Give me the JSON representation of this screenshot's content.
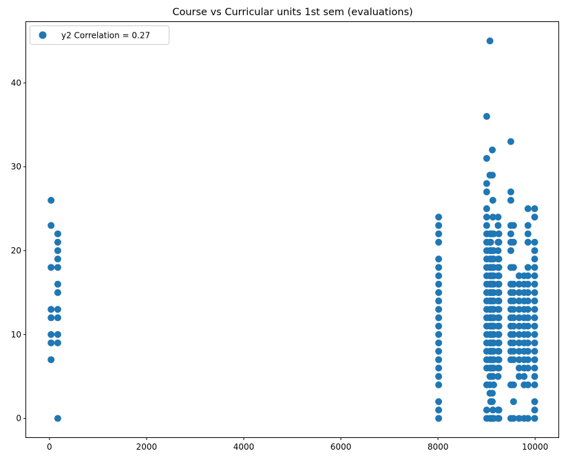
{
  "chart_data": {
    "type": "scatter",
    "title": "Course vs Curricular units 1st sem (evaluations)",
    "xlabel": "",
    "ylabel": "",
    "xlim": [
      -480,
      10480
    ],
    "ylim": [
      -2.25,
      47.25
    ],
    "xticks": [
      0,
      2000,
      4000,
      6000,
      8000,
      10000
    ],
    "yticks": [
      0,
      10,
      20,
      30,
      40
    ],
    "grid": false,
    "legend": {
      "placement": "top-left",
      "label": "y2 Correlation = 0.27"
    },
    "marker_color": "#1f77b4",
    "series": [
      {
        "name": "y2 Correlation = 0.27",
        "color": "#1f77b4",
        "points": [
          [
            33,
            7
          ],
          [
            33,
            9
          ],
          [
            33,
            10
          ],
          [
            33,
            12
          ],
          [
            33,
            13
          ],
          [
            33,
            18
          ],
          [
            33,
            23
          ],
          [
            33,
            26
          ],
          [
            171,
            0
          ],
          [
            171,
            9
          ],
          [
            171,
            10
          ],
          [
            171,
            12
          ],
          [
            171,
            13
          ],
          [
            171,
            15
          ],
          [
            171,
            16
          ],
          [
            171,
            18
          ],
          [
            171,
            19
          ],
          [
            171,
            20
          ],
          [
            171,
            21
          ],
          [
            171,
            22
          ],
          [
            8014,
            0
          ],
          [
            8014,
            1
          ],
          [
            8014,
            2
          ],
          [
            8014,
            4
          ],
          [
            8014,
            5
          ],
          [
            8014,
            6
          ],
          [
            8014,
            7
          ],
          [
            8014,
            8
          ],
          [
            8014,
            9
          ],
          [
            8014,
            10
          ],
          [
            8014,
            11
          ],
          [
            8014,
            12
          ],
          [
            8014,
            13
          ],
          [
            8014,
            14
          ],
          [
            8014,
            15
          ],
          [
            8014,
            16
          ],
          [
            8014,
            17
          ],
          [
            8014,
            18
          ],
          [
            8014,
            19
          ],
          [
            8014,
            21
          ],
          [
            8014,
            22
          ],
          [
            8014,
            23
          ],
          [
            8014,
            24
          ],
          [
            9003,
            0
          ],
          [
            9003,
            1
          ],
          [
            9003,
            4
          ],
          [
            9003,
            6
          ],
          [
            9003,
            7
          ],
          [
            9003,
            8
          ],
          [
            9003,
            9
          ],
          [
            9003,
            10
          ],
          [
            9003,
            11
          ],
          [
            9003,
            12
          ],
          [
            9003,
            13
          ],
          [
            9003,
            14
          ],
          [
            9003,
            15
          ],
          [
            9003,
            16
          ],
          [
            9003,
            17
          ],
          [
            9003,
            18
          ],
          [
            9003,
            19
          ],
          [
            9003,
            20
          ],
          [
            9003,
            21
          ],
          [
            9003,
            22
          ],
          [
            9003,
            23
          ],
          [
            9003,
            24
          ],
          [
            9003,
            25
          ],
          [
            9003,
            27
          ],
          [
            9003,
            28
          ],
          [
            9003,
            31
          ],
          [
            9003,
            36
          ],
          [
            9070,
            0
          ],
          [
            9070,
            3
          ],
          [
            9070,
            4
          ],
          [
            9070,
            5
          ],
          [
            9070,
            6
          ],
          [
            9070,
            7
          ],
          [
            9070,
            8
          ],
          [
            9070,
            9
          ],
          [
            9070,
            10
          ],
          [
            9070,
            11
          ],
          [
            9070,
            12
          ],
          [
            9070,
            13
          ],
          [
            9070,
            14
          ],
          [
            9070,
            15
          ],
          [
            9070,
            16
          ],
          [
            9070,
            17
          ],
          [
            9070,
            18
          ],
          [
            9070,
            19
          ],
          [
            9070,
            20
          ],
          [
            9070,
            21
          ],
          [
            9070,
            22
          ],
          [
            9070,
            29
          ],
          [
            9070,
            45
          ],
          [
            9085,
            0
          ],
          [
            9085,
            2
          ],
          [
            9085,
            5
          ],
          [
            9085,
            6
          ],
          [
            9085,
            7
          ],
          [
            9085,
            8
          ],
          [
            9085,
            9
          ],
          [
            9085,
            10
          ],
          [
            9085,
            11
          ],
          [
            9085,
            12
          ],
          [
            9085,
            13
          ],
          [
            9085,
            14
          ],
          [
            9085,
            15
          ],
          [
            9085,
            16
          ],
          [
            9085,
            17
          ],
          [
            9085,
            18
          ],
          [
            9085,
            19
          ],
          [
            9085,
            20
          ],
          [
            9085,
            21
          ],
          [
            9085,
            22
          ],
          [
            9119,
            0
          ],
          [
            9119,
            2
          ],
          [
            9119,
            3
          ],
          [
            9119,
            5
          ],
          [
            9119,
            6
          ],
          [
            9119,
            7
          ],
          [
            9119,
            8
          ],
          [
            9119,
            9
          ],
          [
            9119,
            10
          ],
          [
            9119,
            11
          ],
          [
            9119,
            12
          ],
          [
            9119,
            13
          ],
          [
            9119,
            14
          ],
          [
            9119,
            15
          ],
          [
            9119,
            16
          ],
          [
            9119,
            17
          ],
          [
            9119,
            18
          ],
          [
            9119,
            19
          ],
          [
            9119,
            20
          ],
          [
            9119,
            22
          ],
          [
            9119,
            29
          ],
          [
            9119,
            32
          ],
          [
            9130,
            0
          ],
          [
            9130,
            1
          ],
          [
            9130,
            5
          ],
          [
            9130,
            6
          ],
          [
            9130,
            7
          ],
          [
            9130,
            8
          ],
          [
            9130,
            9
          ],
          [
            9130,
            10
          ],
          [
            9130,
            11
          ],
          [
            9130,
            12
          ],
          [
            9130,
            13
          ],
          [
            9130,
            14
          ],
          [
            9130,
            15
          ],
          [
            9130,
            16
          ],
          [
            9130,
            17
          ],
          [
            9130,
            18
          ],
          [
            9130,
            19
          ],
          [
            9130,
            20
          ],
          [
            9130,
            24
          ],
          [
            9130,
            26
          ],
          [
            9147,
            0
          ],
          [
            9147,
            4
          ],
          [
            9147,
            6
          ],
          [
            9147,
            7
          ],
          [
            9147,
            8
          ],
          [
            9147,
            9
          ],
          [
            9147,
            10
          ],
          [
            9147,
            11
          ],
          [
            9147,
            12
          ],
          [
            9147,
            13
          ],
          [
            9147,
            14
          ],
          [
            9147,
            15
          ],
          [
            9147,
            16
          ],
          [
            9147,
            17
          ],
          [
            9147,
            18
          ],
          [
            9147,
            19
          ],
          [
            9147,
            20
          ],
          [
            9147,
            22
          ],
          [
            9238,
            0
          ],
          [
            9238,
            1
          ],
          [
            9238,
            5
          ],
          [
            9238,
            6
          ],
          [
            9238,
            7
          ],
          [
            9238,
            8
          ],
          [
            9238,
            9
          ],
          [
            9238,
            10
          ],
          [
            9238,
            11
          ],
          [
            9238,
            12
          ],
          [
            9238,
            13
          ],
          [
            9238,
            14
          ],
          [
            9238,
            15
          ],
          [
            9238,
            16
          ],
          [
            9238,
            17
          ],
          [
            9238,
            18
          ],
          [
            9238,
            19
          ],
          [
            9238,
            20
          ],
          [
            9238,
            21
          ],
          [
            9238,
            23
          ],
          [
            9238,
            24
          ],
          [
            9254,
            0
          ],
          [
            9254,
            1
          ],
          [
            9254,
            6
          ],
          [
            9254,
            7
          ],
          [
            9254,
            8
          ],
          [
            9254,
            9
          ],
          [
            9254,
            10
          ],
          [
            9254,
            11
          ],
          [
            9254,
            12
          ],
          [
            9254,
            13
          ],
          [
            9254,
            14
          ],
          [
            9254,
            15
          ],
          [
            9254,
            16
          ],
          [
            9254,
            17
          ],
          [
            9254,
            18
          ],
          [
            9254,
            19
          ],
          [
            9254,
            21
          ],
          [
            9254,
            22
          ],
          [
            9500,
            0
          ],
          [
            9500,
            4
          ],
          [
            9500,
            7
          ],
          [
            9500,
            8
          ],
          [
            9500,
            9
          ],
          [
            9500,
            10
          ],
          [
            9500,
            11
          ],
          [
            9500,
            12
          ],
          [
            9500,
            13
          ],
          [
            9500,
            14
          ],
          [
            9500,
            15
          ],
          [
            9500,
            16
          ],
          [
            9500,
            18
          ],
          [
            9500,
            20
          ],
          [
            9500,
            21
          ],
          [
            9500,
            22
          ],
          [
            9500,
            23
          ],
          [
            9500,
            26
          ],
          [
            9500,
            27
          ],
          [
            9500,
            33
          ],
          [
            9556,
            0
          ],
          [
            9556,
            2
          ],
          [
            9556,
            4
          ],
          [
            9556,
            7
          ],
          [
            9556,
            8
          ],
          [
            9556,
            9
          ],
          [
            9556,
            10
          ],
          [
            9556,
            11
          ],
          [
            9556,
            12
          ],
          [
            9556,
            13
          ],
          [
            9556,
            14
          ],
          [
            9556,
            15
          ],
          [
            9556,
            16
          ],
          [
            9556,
            18
          ],
          [
            9556,
            21
          ],
          [
            9556,
            23
          ],
          [
            9670,
            0
          ],
          [
            9670,
            5
          ],
          [
            9670,
            6
          ],
          [
            9670,
            7
          ],
          [
            9670,
            8
          ],
          [
            9670,
            9
          ],
          [
            9670,
            10
          ],
          [
            9670,
            11
          ],
          [
            9670,
            12
          ],
          [
            9670,
            13
          ],
          [
            9670,
            14
          ],
          [
            9670,
            15
          ],
          [
            9670,
            16
          ],
          [
            9670,
            17
          ],
          [
            9773,
            0
          ],
          [
            9773,
            4
          ],
          [
            9773,
            5
          ],
          [
            9773,
            6
          ],
          [
            9773,
            7
          ],
          [
            9773,
            8
          ],
          [
            9773,
            9
          ],
          [
            9773,
            10
          ],
          [
            9773,
            11
          ],
          [
            9773,
            12
          ],
          [
            9773,
            13
          ],
          [
            9773,
            14
          ],
          [
            9773,
            15
          ],
          [
            9773,
            16
          ],
          [
            9773,
            17
          ],
          [
            9853,
            0
          ],
          [
            9853,
            4
          ],
          [
            9853,
            6
          ],
          [
            9853,
            7
          ],
          [
            9853,
            8
          ],
          [
            9853,
            9
          ],
          [
            9853,
            10
          ],
          [
            9853,
            11
          ],
          [
            9853,
            12
          ],
          [
            9853,
            13
          ],
          [
            9853,
            14
          ],
          [
            9853,
            15
          ],
          [
            9853,
            16
          ],
          [
            9853,
            17
          ],
          [
            9853,
            18
          ],
          [
            9853,
            21
          ],
          [
            9853,
            22
          ],
          [
            9853,
            23
          ],
          [
            9853,
            25
          ],
          [
            9991,
            0
          ],
          [
            9991,
            1
          ],
          [
            9991,
            2
          ],
          [
            9991,
            4
          ],
          [
            9991,
            5
          ],
          [
            9991,
            6
          ],
          [
            9991,
            7
          ],
          [
            9991,
            8
          ],
          [
            9991,
            9
          ],
          [
            9991,
            10
          ],
          [
            9991,
            11
          ],
          [
            9991,
            12
          ],
          [
            9991,
            13
          ],
          [
            9991,
            14
          ],
          [
            9991,
            15
          ],
          [
            9991,
            16
          ],
          [
            9991,
            17
          ],
          [
            9991,
            18
          ],
          [
            9991,
            19
          ],
          [
            9991,
            20
          ],
          [
            9991,
            21
          ],
          [
            9991,
            24
          ],
          [
            9991,
            25
          ]
        ]
      }
    ]
  }
}
